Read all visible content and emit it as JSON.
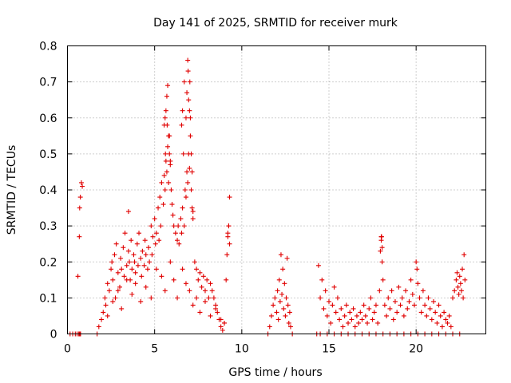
{
  "chart_data": {
    "type": "scatter",
    "title": "Day 141 of 2025, SRMTID for receiver murk",
    "xlabel": "GPS time / hours",
    "ylabel": "SRMTID / TECUs",
    "xlim": [
      0,
      24
    ],
    "ylim": [
      0,
      0.8
    ],
    "x_ticks": [
      0,
      5,
      10,
      15,
      20
    ],
    "x_tick_labels": [
      "0",
      "5",
      "10",
      "15",
      "20"
    ],
    "y_ticks": [
      0,
      0.1,
      0.2,
      0.3,
      0.4,
      0.5,
      0.6,
      0.7,
      0.8
    ],
    "y_tick_labels": [
      "0",
      "0.1",
      "0.2",
      "0.3",
      "0.4",
      "0.5",
      "0.6",
      "0.7",
      "0.8"
    ],
    "grid": true,
    "marker": "+",
    "marker_color": "#e00000",
    "series": [
      {
        "name": "SRMTID",
        "x": [
          0.15,
          0.3,
          0.45,
          0.55,
          0.65,
          0.7,
          0.72,
          0.75,
          0.6,
          0.68,
          0.7,
          0.74,
          0.8,
          0.85,
          0.7,
          0.66,
          1.7,
          1.8,
          1.95,
          2.05,
          2.15,
          2.2,
          2.3,
          2.4,
          2.5,
          2.55,
          2.6,
          2.7,
          2.75,
          2.8,
          2.9,
          3.0,
          3.05,
          3.1,
          3.2,
          3.25,
          3.3,
          3.4,
          3.5,
          3.55,
          3.6,
          3.65,
          3.7,
          3.8,
          3.85,
          3.9,
          4.0,
          4.05,
          4.1,
          4.2,
          4.25,
          4.3,
          4.4,
          4.45,
          4.5,
          4.6,
          4.65,
          4.7,
          4.8,
          4.85,
          4.9,
          5.0,
          5.05,
          5.1,
          5.2,
          5.25,
          5.3,
          5.35,
          5.4,
          5.5,
          5.55,
          5.6,
          5.65,
          5.7,
          5.75,
          5.8,
          5.85,
          5.9,
          5.95,
          6.0,
          6.05,
          6.1,
          6.2,
          6.3,
          6.35,
          6.4,
          6.5,
          6.55,
          6.6,
          6.7,
          6.75,
          6.8,
          6.85,
          6.9,
          6.95,
          7.0,
          7.05,
          7.1,
          7.15,
          7.2,
          7.3,
          7.4,
          7.5,
          7.6,
          7.7,
          7.8,
          7.9,
          8.0,
          8.1,
          8.2,
          8.3,
          8.4,
          8.5,
          8.6,
          8.7,
          8.8,
          8.9,
          9.0,
          9.1,
          9.15,
          9.2,
          9.25,
          9.3,
          2.3,
          2.6,
          2.9,
          3.1,
          3.4,
          3.7,
          3.9,
          4.2,
          4.5,
          4.8,
          5.1,
          5.4,
          5.6,
          5.9,
          6.1,
          6.3,
          6.6,
          6.8,
          7.0,
          7.2,
          7.4,
          7.6,
          7.9,
          8.2,
          8.5,
          8.8,
          9.0,
          5.55,
          5.6,
          5.62,
          5.65,
          5.7,
          5.72,
          5.75,
          5.8,
          5.85,
          5.9,
          6.55,
          6.6,
          6.65,
          6.7,
          6.8,
          6.85,
          6.9,
          6.92,
          6.95,
          7.0,
          7.02,
          7.05,
          7.1,
          7.15,
          7.2,
          9.2,
          9.25,
          9.3,
          3.5,
          11.5,
          11.6,
          11.7,
          11.8,
          11.9,
          12.0,
          12.05,
          12.1,
          12.15,
          12.2,
          12.25,
          12.3,
          12.35,
          12.4,
          12.45,
          12.5,
          12.55,
          12.6,
          12.65,
          12.7,
          12.75,
          12.8,
          12.9,
          14.3,
          14.4,
          14.5,
          14.6,
          14.7,
          14.8,
          14.9,
          15.0,
          15.1,
          15.2,
          15.3,
          15.4,
          15.5,
          15.6,
          15.7,
          15.8,
          15.9,
          16.0,
          16.1,
          16.2,
          16.3,
          16.4,
          16.5,
          16.6,
          16.7,
          16.8,
          16.9,
          17.0,
          17.1,
          17.2,
          17.3,
          17.4,
          17.5,
          17.6,
          17.7,
          17.8,
          17.9,
          18.0,
          18.05,
          18.1,
          18.2,
          18.3,
          18.4,
          18.5,
          18.6,
          18.7,
          18.8,
          18.9,
          19.0,
          19.1,
          19.2,
          19.3,
          19.4,
          19.5,
          19.6,
          19.7,
          19.8,
          19.9,
          20.0,
          20.05,
          20.1,
          20.2,
          20.3,
          20.4,
          20.5,
          20.6,
          20.7,
          20.8,
          20.9,
          21.0,
          21.1,
          21.2,
          21.3,
          21.4,
          21.5,
          21.6,
          21.7,
          21.8,
          21.9,
          22.0,
          22.1,
          22.2,
          22.3,
          22.35,
          22.4,
          22.45,
          22.5,
          22.55,
          22.6,
          22.65,
          22.7,
          22.75,
          22.8,
          14.5,
          14.9,
          15.3,
          15.7,
          16.1,
          16.5,
          16.9,
          17.3,
          17.7,
          18.1,
          18.5,
          18.9,
          19.3,
          19.7,
          20.1,
          20.5,
          20.9,
          21.3,
          21.7,
          22.1,
          22.5,
          17.95,
          18.0,
          18.02,
          18.05
        ],
        "y": [
          0.0,
          0.0,
          0.0,
          0.0,
          0.0,
          0.0,
          0.0,
          0.0,
          0.16,
          0.27,
          0.35,
          0.38,
          0.42,
          0.41,
          0.0,
          0.0,
          0.0,
          0.02,
          0.04,
          0.06,
          0.1,
          0.08,
          0.14,
          0.12,
          0.18,
          0.2,
          0.15,
          0.22,
          0.1,
          0.25,
          0.17,
          0.13,
          0.21,
          0.18,
          0.24,
          0.16,
          0.28,
          0.19,
          0.23,
          0.2,
          0.15,
          0.26,
          0.18,
          0.22,
          0.2,
          0.17,
          0.25,
          0.19,
          0.28,
          0.21,
          0.16,
          0.23,
          0.19,
          0.26,
          0.22,
          0.18,
          0.24,
          0.2,
          0.3,
          0.22,
          0.27,
          0.32,
          0.25,
          0.28,
          0.35,
          0.26,
          0.38,
          0.3,
          0.42,
          0.36,
          0.44,
          0.4,
          0.48,
          0.45,
          0.52,
          0.42,
          0.55,
          0.47,
          0.4,
          0.36,
          0.33,
          0.3,
          0.28,
          0.26,
          0.3,
          0.25,
          0.32,
          0.28,
          0.35,
          0.3,
          0.4,
          0.38,
          0.45,
          0.42,
          0.5,
          0.46,
          0.55,
          0.4,
          0.35,
          0.32,
          0.2,
          0.18,
          0.15,
          0.17,
          0.13,
          0.16,
          0.12,
          0.15,
          0.1,
          0.14,
          0.12,
          0.1,
          0.08,
          0.06,
          0.04,
          0.02,
          0.01,
          0.03,
          0.15,
          0.22,
          0.28,
          0.3,
          0.38,
          0.05,
          0.09,
          0.12,
          0.07,
          0.15,
          0.11,
          0.14,
          0.09,
          0.13,
          0.1,
          0.18,
          0.16,
          0.12,
          0.2,
          0.15,
          0.1,
          0.18,
          0.14,
          0.12,
          0.08,
          0.1,
          0.06,
          0.09,
          0.05,
          0.07,
          0.04,
          0.03,
          0.58,
          0.6,
          0.5,
          0.62,
          0.66,
          0.58,
          0.69,
          0.55,
          0.5,
          0.48,
          0.58,
          0.62,
          0.5,
          0.7,
          0.6,
          0.67,
          0.76,
          0.73,
          0.65,
          0.62,
          0.7,
          0.6,
          0.5,
          0.45,
          0.34,
          0.27,
          0.3,
          0.25,
          0.34,
          0.0,
          0.02,
          0.05,
          0.08,
          0.1,
          0.06,
          0.12,
          0.04,
          0.15,
          0.09,
          0.22,
          0.11,
          0.18,
          0.07,
          0.14,
          0.05,
          0.1,
          0.21,
          0.08,
          0.03,
          0.06,
          0.02,
          0.0,
          0.0,
          0.19,
          0.1,
          0.15,
          0.07,
          0.12,
          0.05,
          0.09,
          0.03,
          0.08,
          0.13,
          0.06,
          0.1,
          0.04,
          0.07,
          0.02,
          0.05,
          0.08,
          0.03,
          0.06,
          0.04,
          0.07,
          0.02,
          0.05,
          0.03,
          0.06,
          0.04,
          0.08,
          0.05,
          0.03,
          0.07,
          0.1,
          0.04,
          0.06,
          0.08,
          0.03,
          0.12,
          0.27,
          0.2,
          0.15,
          0.08,
          0.05,
          0.1,
          0.07,
          0.12,
          0.04,
          0.09,
          0.06,
          0.13,
          0.08,
          0.1,
          0.05,
          0.12,
          0.07,
          0.09,
          0.15,
          0.11,
          0.08,
          0.2,
          0.18,
          0.14,
          0.1,
          0.06,
          0.12,
          0.08,
          0.05,
          0.1,
          0.07,
          0.04,
          0.09,
          0.06,
          0.03,
          0.08,
          0.05,
          0.02,
          0.06,
          0.04,
          0.03,
          0.05,
          0.02,
          0.1,
          0.12,
          0.15,
          0.17,
          0.13,
          0.11,
          0.16,
          0.14,
          0.12,
          0.18,
          0.1,
          0.22,
          0.15,
          0.0,
          0.0,
          0.0,
          0.0,
          0.0,
          0.0,
          0.0,
          0.0,
          0.0,
          0.0,
          0.0,
          0.0,
          0.0,
          0.0,
          0.0,
          0.0,
          0.0,
          0.0,
          0.0,
          0.0,
          0.0,
          0.23,
          0.26,
          0.27,
          0.24
        ]
      }
    ]
  }
}
